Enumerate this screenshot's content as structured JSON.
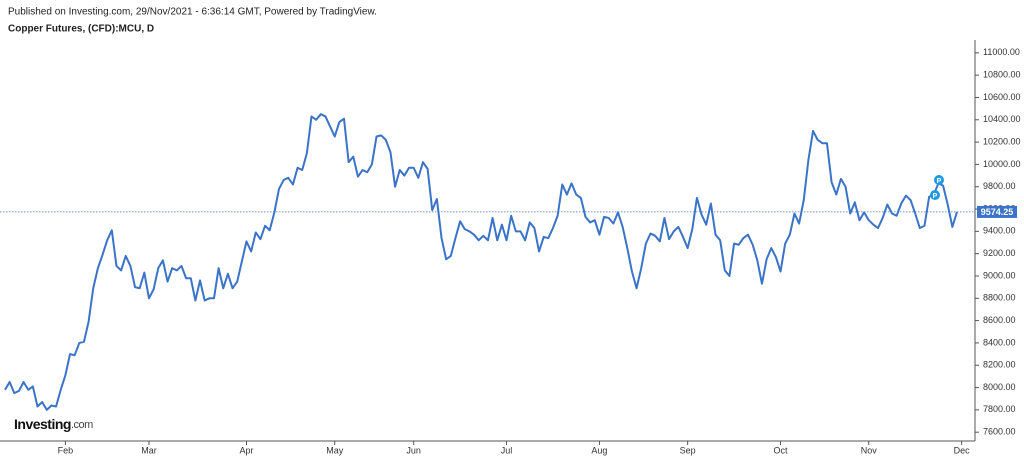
{
  "chart_data": {
    "type": "line",
    "subtitle": "Published on Investing.com, 29/Nov/2021 - 6:36:14 GMT, Powered by TradingView.",
    "title": "Copper Futures, (CFD):MCU, D",
    "watermark": {
      "brand": "Investing",
      "suffix": ".com"
    },
    "color": "#3a73c8",
    "categories": [
      null,
      null,
      null,
      null,
      null,
      null,
      null,
      null,
      null,
      null,
      null,
      null,
      null,
      "Feb",
      null,
      null,
      null,
      null,
      null,
      null,
      null,
      null,
      null,
      null,
      null,
      null,
      null,
      null,
      null,
      null,
      null,
      "Mar",
      null,
      null,
      null,
      null,
      null,
      null,
      null,
      null,
      null,
      null,
      null,
      null,
      null,
      null,
      null,
      null,
      null,
      null,
      null,
      null,
      "Apr",
      null,
      null,
      null,
      null,
      null,
      null,
      null,
      null,
      null,
      null,
      null,
      null,
      null,
      null,
      null,
      null,
      null,
      null,
      "May",
      null,
      null,
      null,
      null,
      null,
      null,
      null,
      null,
      null,
      null,
      null,
      null,
      null,
      null,
      null,
      null,
      "Jun",
      null,
      null,
      null,
      null,
      null,
      null,
      null,
      null,
      null,
      null,
      null,
      null,
      null,
      null,
      null,
      null,
      null,
      null,
      null,
      "Jul",
      null,
      null,
      null,
      null,
      null,
      null,
      null,
      null,
      null,
      null,
      null,
      null,
      null,
      null,
      null,
      null,
      null,
      null,
      null,
      "Aug",
      null,
      null,
      null,
      null,
      null,
      null,
      null,
      null,
      null,
      null,
      null,
      null,
      null,
      null,
      null,
      null,
      null,
      null,
      "Sep",
      null,
      null,
      null,
      null,
      null,
      null,
      null,
      null,
      null,
      null,
      null,
      null,
      null,
      null,
      null,
      null,
      null,
      null,
      null,
      "Oct",
      null,
      null,
      null,
      null,
      null,
      null,
      null,
      null,
      null,
      null,
      null,
      null,
      null,
      null,
      null,
      null,
      null,
      null,
      "Nov",
      null,
      null,
      null,
      null,
      null,
      null,
      null,
      null,
      null,
      null,
      null,
      null,
      null,
      null,
      null,
      null,
      null,
      null,
      null,
      "Dec"
    ],
    "values": [
      7980,
      8050,
      7950,
      7970,
      8050,
      7980,
      8010,
      7830,
      7870,
      7800,
      7840,
      7830,
      7980,
      8110,
      8300,
      8290,
      8400,
      8410,
      8590,
      8890,
      9070,
      9190,
      9320,
      9410,
      9090,
      9050,
      9180,
      9090,
      8900,
      8890,
      9030,
      8800,
      8880,
      9070,
      9140,
      8950,
      9070,
      9050,
      9090,
      8980,
      8980,
      8780,
      8960,
      8780,
      8800,
      8800,
      9070,
      8890,
      9020,
      8890,
      8950,
      9130,
      9310,
      9220,
      9390,
      9330,
      9450,
      9410,
      9570,
      9780,
      9860,
      9880,
      9820,
      9970,
      9950,
      10100,
      10430,
      10400,
      10450,
      10430,
      10340,
      10250,
      10380,
      10410,
      10020,
      10070,
      9890,
      9950,
      9930,
      10000,
      10250,
      10260,
      10220,
      10110,
      9800,
      9950,
      9900,
      9970,
      9970,
      9880,
      10020,
      9960,
      9590,
      9690,
      9340,
      9150,
      9180,
      9340,
      9490,
      9420,
      9400,
      9370,
      9320,
      9360,
      9320,
      9520,
      9320,
      9460,
      9320,
      9540,
      9400,
      9400,
      9320,
      9480,
      9430,
      9220,
      9350,
      9340,
      9430,
      9540,
      9820,
      9730,
      9830,
      9730,
      9700,
      9530,
      9480,
      9500,
      9370,
      9530,
      9520,
      9470,
      9570,
      9440,
      9250,
      9040,
      8890,
      9070,
      9290,
      9380,
      9360,
      9310,
      9520,
      9330,
      9400,
      9440,
      9350,
      9250,
      9420,
      9700,
      9550,
      9460,
      9650,
      9370,
      9320,
      9050,
      9000,
      9290,
      9280,
      9340,
      9370,
      9280,
      9140,
      8930,
      9150,
      9250,
      9170,
      9040,
      9290,
      9370,
      9560,
      9470,
      9680,
      10040,
      10300,
      10220,
      10190,
      10190,
      9840,
      9730,
      9870,
      9800,
      9560,
      9660,
      9500,
      9570,
      9500,
      9460,
      9430,
      9520,
      9640,
      9560,
      9540,
      9650,
      9720,
      9680,
      9560,
      9430,
      9450,
      9710,
      9730,
      9830,
      9810,
      9640,
      9440,
      9574.25,
      null
    ],
    "ylim": [
      7530,
      11115
    ],
    "yticks": [
      {
        "value": 7600,
        "label": "7600.00"
      },
      {
        "value": 7800,
        "label": "7800.00"
      },
      {
        "value": 8000,
        "label": "8000.00"
      },
      {
        "value": 8200,
        "label": "8200.00"
      },
      {
        "value": 8400,
        "label": "8400.00"
      },
      {
        "value": 8600,
        "label": "8600.00"
      },
      {
        "value": 8800,
        "label": "8800.00"
      },
      {
        "value": 9000,
        "label": "9000.00"
      },
      {
        "value": 9200,
        "label": "9200.00"
      },
      {
        "value": 9400,
        "label": "9400.00"
      },
      {
        "value": 9600,
        "label": "9600.00"
      },
      {
        "value": 9800,
        "label": "9800.00"
      },
      {
        "value": 10000,
        "label": "10000.00"
      },
      {
        "value": 10200,
        "label": "10200.00"
      },
      {
        "value": 10400,
        "label": "10400.00"
      },
      {
        "value": 10600,
        "label": "10600.00"
      },
      {
        "value": 10800,
        "label": "10800.00"
      },
      {
        "value": 11000,
        "label": "11000.00"
      }
    ],
    "grid": false
  }
}
